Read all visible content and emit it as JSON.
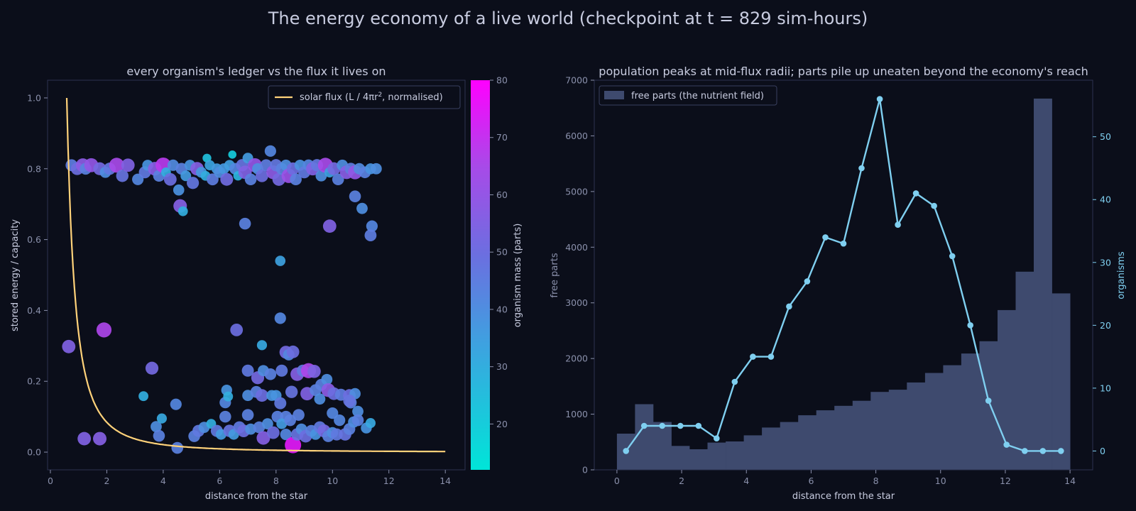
{
  "figure": {
    "title": "The energy economy of a live world  (checkpoint at t = 829 sim-hours)"
  },
  "chart_data": [
    {
      "type": "scatter",
      "title": "every organism's ledger vs the flux it lives on",
      "xlabel": "distance from the star",
      "ylabel": "stored energy / capacity",
      "xlim": [
        -0.1,
        14.7
      ],
      "ylim": [
        -0.05,
        1.05
      ],
      "xticks": [
        "0",
        "2",
        "4",
        "6",
        "8",
        "10",
        "12",
        "14"
      ],
      "xtick_values": [
        0,
        2,
        4,
        6,
        8,
        10,
        12,
        14
      ],
      "yticks": [
        "0.0",
        "0.2",
        "0.4",
        "0.6",
        "0.8",
        "1.0"
      ],
      "ytick_values": [
        0.0,
        0.2,
        0.4,
        0.6,
        0.8,
        1.0
      ],
      "grid": false,
      "legend": {
        "placement": "top-right",
        "entry": "solar flux  (L / 4πr², normalised)",
        "entry_main": "solar flux  (L / 4πr",
        "entry_sup": "2",
        "entry_tail": ", normalised)"
      },
      "flux_curve": {
        "label": "solar flux  (L / 4πr², normalised)",
        "r_min": 0.58,
        "r_max": 14.0,
        "color": "#ffd27a"
      },
      "colorbar": {
        "label": "organism mass (parts)",
        "range": [
          12,
          80
        ],
        "ticks": [
          "20",
          "30",
          "40",
          "50",
          "60",
          "70",
          "80"
        ],
        "tick_values": [
          20,
          30,
          40,
          50,
          60,
          70,
          80
        ],
        "colors": [
          "#00e5d8",
          "#ff00ff"
        ]
      },
      "points": [
        [
          0.75,
          0.81,
          45
        ],
        [
          0.95,
          0.8,
          50
        ],
        [
          1.15,
          0.81,
          58
        ],
        [
          1.25,
          0.8,
          44
        ],
        [
          1.45,
          0.81,
          60
        ],
        [
          1.75,
          0.8,
          52
        ],
        [
          1.95,
          0.79,
          40
        ],
        [
          2.1,
          0.8,
          47
        ],
        [
          2.35,
          0.81,
          65
        ],
        [
          2.55,
          0.78,
          48
        ],
        [
          2.75,
          0.81,
          55
        ],
        [
          3.1,
          0.77,
          42
        ],
        [
          3.35,
          0.79,
          46
        ],
        [
          3.45,
          0.81,
          38
        ],
        [
          3.7,
          0.8,
          57
        ],
        [
          3.85,
          0.78,
          44
        ],
        [
          4.0,
          0.81,
          68
        ],
        [
          4.1,
          0.79,
          30
        ],
        [
          4.25,
          0.77,
          50
        ],
        [
          4.35,
          0.81,
          41
        ],
        [
          4.55,
          0.74,
          39
        ],
        [
          4.65,
          0.8,
          44
        ],
        [
          4.8,
          0.78,
          36
        ],
        [
          4.95,
          0.81,
          38
        ],
        [
          5.05,
          0.76,
          47
        ],
        [
          5.2,
          0.8,
          56
        ],
        [
          5.35,
          0.79,
          37
        ],
        [
          5.5,
          0.78,
          30
        ],
        [
          5.55,
          0.83,
          24
        ],
        [
          5.65,
          0.81,
          33
        ],
        [
          5.75,
          0.77,
          45
        ],
        [
          5.9,
          0.8,
          36
        ],
        [
          6.0,
          0.79,
          40
        ],
        [
          6.15,
          0.8,
          37
        ],
        [
          6.25,
          0.77,
          51
        ],
        [
          6.35,
          0.81,
          35
        ],
        [
          6.45,
          0.84,
          20
        ],
        [
          6.55,
          0.8,
          42
        ],
        [
          6.65,
          0.78,
          28
        ],
        [
          6.8,
          0.81,
          48
        ],
        [
          6.9,
          0.79,
          55
        ],
        [
          7.0,
          0.83,
          36
        ],
        [
          7.1,
          0.77,
          44
        ],
        [
          7.25,
          0.81,
          60
        ],
        [
          7.35,
          0.8,
          40
        ],
        [
          7.5,
          0.78,
          50
        ],
        [
          7.65,
          0.81,
          45
        ],
        [
          7.8,
          0.85,
          42
        ],
        [
          7.9,
          0.79,
          58
        ],
        [
          8.0,
          0.81,
          47
        ],
        [
          8.1,
          0.77,
          52
        ],
        [
          8.2,
          0.8,
          44
        ],
        [
          8.35,
          0.81,
          40
        ],
        [
          8.45,
          0.78,
          62
        ],
        [
          8.6,
          0.8,
          50
        ],
        [
          8.7,
          0.77,
          44
        ],
        [
          8.85,
          0.81,
          39
        ],
        [
          9.0,
          0.79,
          46
        ],
        [
          9.15,
          0.81,
          42
        ],
        [
          9.3,
          0.8,
          55
        ],
        [
          9.45,
          0.81,
          47
        ],
        [
          9.6,
          0.78,
          40
        ],
        [
          9.75,
          0.81,
          65
        ],
        [
          9.9,
          0.79,
          34
        ],
        [
          10.05,
          0.8,
          52
        ],
        [
          10.2,
          0.77,
          44
        ],
        [
          10.35,
          0.81,
          40
        ],
        [
          10.5,
          0.79,
          57
        ],
        [
          10.65,
          0.8,
          45
        ],
        [
          10.8,
          0.79,
          60
        ],
        [
          10.95,
          0.8,
          41
        ],
        [
          11.15,
          0.79,
          44
        ],
        [
          11.35,
          0.8,
          38
        ],
        [
          11.55,
          0.8,
          40
        ],
        [
          4.6,
          0.695,
          56
        ],
        [
          4.7,
          0.68,
          30
        ],
        [
          6.9,
          0.645,
          44
        ],
        [
          9.9,
          0.638,
          55
        ],
        [
          10.8,
          0.722,
          44
        ],
        [
          11.05,
          0.688,
          40
        ],
        [
          11.4,
          0.638,
          42
        ],
        [
          11.35,
          0.612,
          45
        ],
        [
          8.15,
          0.54,
          34
        ],
        [
          8.15,
          0.378,
          42
        ],
        [
          0.65,
          0.298,
          55
        ],
        [
          1.9,
          0.345,
          66
        ],
        [
          3.6,
          0.237,
          52
        ],
        [
          6.6,
          0.345,
          50
        ],
        [
          7.5,
          0.302,
          32
        ],
        [
          7.0,
          0.23,
          46
        ],
        [
          7.35,
          0.21,
          52
        ],
        [
          7.55,
          0.23,
          40
        ],
        [
          7.8,
          0.22,
          44
        ],
        [
          8.0,
          0.16,
          38
        ],
        [
          8.2,
          0.23,
          46
        ],
        [
          8.35,
          0.282,
          52
        ],
        [
          8.45,
          0.275,
          42
        ],
        [
          8.6,
          0.283,
          50
        ],
        [
          8.75,
          0.22,
          56
        ],
        [
          8.95,
          0.23,
          46
        ],
        [
          9.15,
          0.23,
          66
        ],
        [
          9.35,
          0.228,
          54
        ],
        [
          9.6,
          0.19,
          44
        ],
        [
          9.8,
          0.205,
          40
        ],
        [
          9.85,
          0.175,
          58
        ],
        [
          10.05,
          0.165,
          50
        ],
        [
          10.3,
          0.162,
          45
        ],
        [
          10.6,
          0.16,
          50
        ],
        [
          10.8,
          0.165,
          40
        ],
        [
          10.65,
          0.14,
          44
        ],
        [
          6.25,
          0.175,
          38
        ],
        [
          6.2,
          0.14,
          42
        ],
        [
          6.3,
          0.157,
          30
        ],
        [
          7.0,
          0.16,
          40
        ],
        [
          7.3,
          0.17,
          44
        ],
        [
          7.5,
          0.16,
          50
        ],
        [
          7.85,
          0.16,
          38
        ],
        [
          8.15,
          0.138,
          46
        ],
        [
          8.35,
          0.1,
          44
        ],
        [
          8.55,
          0.17,
          48
        ],
        [
          8.8,
          0.105,
          44
        ],
        [
          9.1,
          0.165,
          55
        ],
        [
          9.4,
          0.175,
          44
        ],
        [
          9.55,
          0.15,
          40
        ],
        [
          10.0,
          0.11,
          42
        ],
        [
          10.6,
          0.145,
          48
        ],
        [
          10.9,
          0.115,
          40
        ],
        [
          3.3,
          0.158,
          30
        ],
        [
          3.75,
          0.072,
          40
        ],
        [
          3.95,
          0.095,
          32
        ],
        [
          3.85,
          0.046,
          44
        ],
        [
          4.45,
          0.135,
          42
        ],
        [
          4.5,
          0.012,
          44
        ],
        [
          1.2,
          0.038,
          55
        ],
        [
          1.75,
          0.038,
          56
        ],
        [
          5.1,
          0.045,
          44
        ],
        [
          5.25,
          0.06,
          46
        ],
        [
          5.45,
          0.07,
          40
        ],
        [
          5.7,
          0.08,
          30
        ],
        [
          5.9,
          0.06,
          46
        ],
        [
          6.05,
          0.05,
          36
        ],
        [
          6.2,
          0.1,
          44
        ],
        [
          6.35,
          0.06,
          48
        ],
        [
          6.5,
          0.05,
          36
        ],
        [
          6.7,
          0.07,
          46
        ],
        [
          6.85,
          0.06,
          50
        ],
        [
          7.0,
          0.105,
          44
        ],
        [
          7.1,
          0.065,
          40
        ],
        [
          7.4,
          0.07,
          44
        ],
        [
          7.55,
          0.04,
          56
        ],
        [
          7.7,
          0.08,
          40
        ],
        [
          7.9,
          0.055,
          50
        ],
        [
          8.05,
          0.1,
          44
        ],
        [
          8.2,
          0.08,
          36
        ],
        [
          8.35,
          0.05,
          42
        ],
        [
          8.5,
          0.09,
          44
        ],
        [
          8.6,
          0.02,
          75
        ],
        [
          8.75,
          0.05,
          48
        ],
        [
          8.9,
          0.065,
          40
        ],
        [
          9.05,
          0.045,
          50
        ],
        [
          9.25,
          0.06,
          44
        ],
        [
          9.4,
          0.05,
          38
        ],
        [
          9.55,
          0.07,
          46
        ],
        [
          9.7,
          0.06,
          52
        ],
        [
          9.85,
          0.045,
          44
        ],
        [
          10.0,
          0.055,
          40
        ],
        [
          10.15,
          0.05,
          46
        ],
        [
          10.25,
          0.09,
          42
        ],
        [
          10.45,
          0.05,
          48
        ],
        [
          10.6,
          0.065,
          44
        ],
        [
          10.75,
          0.085,
          40
        ],
        [
          10.9,
          0.09,
          44
        ],
        [
          11.2,
          0.068,
          38
        ],
        [
          11.35,
          0.082,
          32
        ]
      ]
    },
    {
      "type": "bar+line",
      "title": "population peaks at mid-flux radii; parts pile up uneaten beyond the economy's reach",
      "xlabel": "distance from the star",
      "ylabel": "free parts",
      "y2label": "organisms",
      "xlim": [
        -0.7,
        14.7
      ],
      "ylim": [
        0,
        7000
      ],
      "y2lim": [
        -3,
        59
      ],
      "xticks": [
        "0",
        "2",
        "4",
        "6",
        "8",
        "10",
        "12",
        "14"
      ],
      "xtick_values": [
        0,
        2,
        4,
        6,
        8,
        10,
        12,
        14
      ],
      "yticks": [
        "0",
        "1000",
        "2000",
        "3000",
        "4000",
        "5000",
        "6000",
        "7000"
      ],
      "ytick_values": [
        0,
        1000,
        2000,
        3000,
        4000,
        5000,
        6000,
        7000
      ],
      "y2ticks": [
        "0",
        "10",
        "20",
        "30",
        "40",
        "50"
      ],
      "y2tick_values": [
        0,
        10,
        20,
        30,
        40,
        50
      ],
      "grid": false,
      "legend": {
        "placement": "top-left",
        "entry": "free parts (the nutrient field)"
      },
      "bins": {
        "left_edge": 0.0,
        "width": 0.56,
        "values": [
          650,
          1180,
          860,
          430,
          370,
          490,
          510,
          620,
          760,
          860,
          980,
          1070,
          1150,
          1240,
          1400,
          1440,
          1570,
          1740,
          1880,
          2090,
          2310,
          2870,
          3560,
          6670,
          3170
        ]
      },
      "series": [
        {
          "name": "organisms",
          "x": [
            0.28,
            0.84,
            1.4,
            1.96,
            2.52,
            3.08,
            3.64,
            4.2,
            4.76,
            5.32,
            5.88,
            6.44,
            7.0,
            7.56,
            8.12,
            8.68,
            9.24,
            9.8,
            10.36,
            10.92,
            11.48,
            12.04,
            12.6,
            13.16,
            13.72
          ],
          "values": [
            0,
            4,
            4,
            4,
            4,
            2,
            11,
            15,
            15,
            23,
            27,
            34,
            33,
            45,
            56,
            36,
            41,
            39,
            31,
            20,
            8,
            1,
            0,
            0,
            0
          ],
          "color": "#7fcff0"
        }
      ]
    }
  ]
}
